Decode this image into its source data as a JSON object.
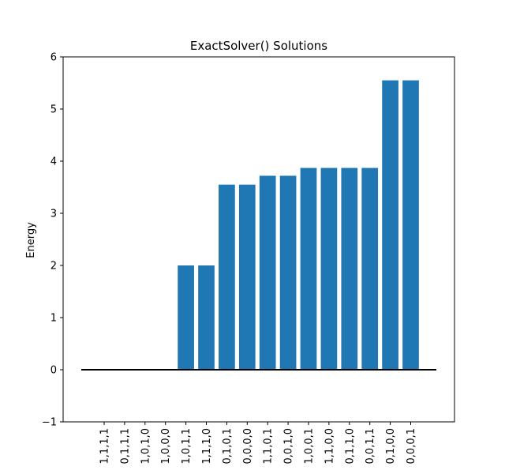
{
  "chart_data": {
    "type": "bar",
    "title": "ExactSolver() Solutions",
    "xlabel": "",
    "ylabel": "Energy",
    "ylim": [
      -1,
      6
    ],
    "yticks": [
      -1,
      0,
      1,
      2,
      3,
      4,
      5,
      6
    ],
    "categories": [
      "1,1,1,1",
      "0,1,1,1",
      "1,0,1,0",
      "1,0,0,0",
      "1,0,1,1",
      "1,1,1,0",
      "0,1,0,1",
      "0,0,0,0",
      "1,1,0,1",
      "0,0,1,0",
      "1,0,0,1",
      "1,1,0,0",
      "0,1,1,0",
      "0,0,1,1",
      "0,1,0,0",
      "0,0,0,1"
    ],
    "values": [
      0,
      0,
      0,
      0,
      2.0,
      2.0,
      3.55,
      3.55,
      3.72,
      3.72,
      3.87,
      3.87,
      3.87,
      3.87,
      5.55,
      5.55
    ],
    "bar_color": "#1f77b4",
    "baseline": {
      "y": 0,
      "color": "#000000"
    },
    "grid": false
  }
}
